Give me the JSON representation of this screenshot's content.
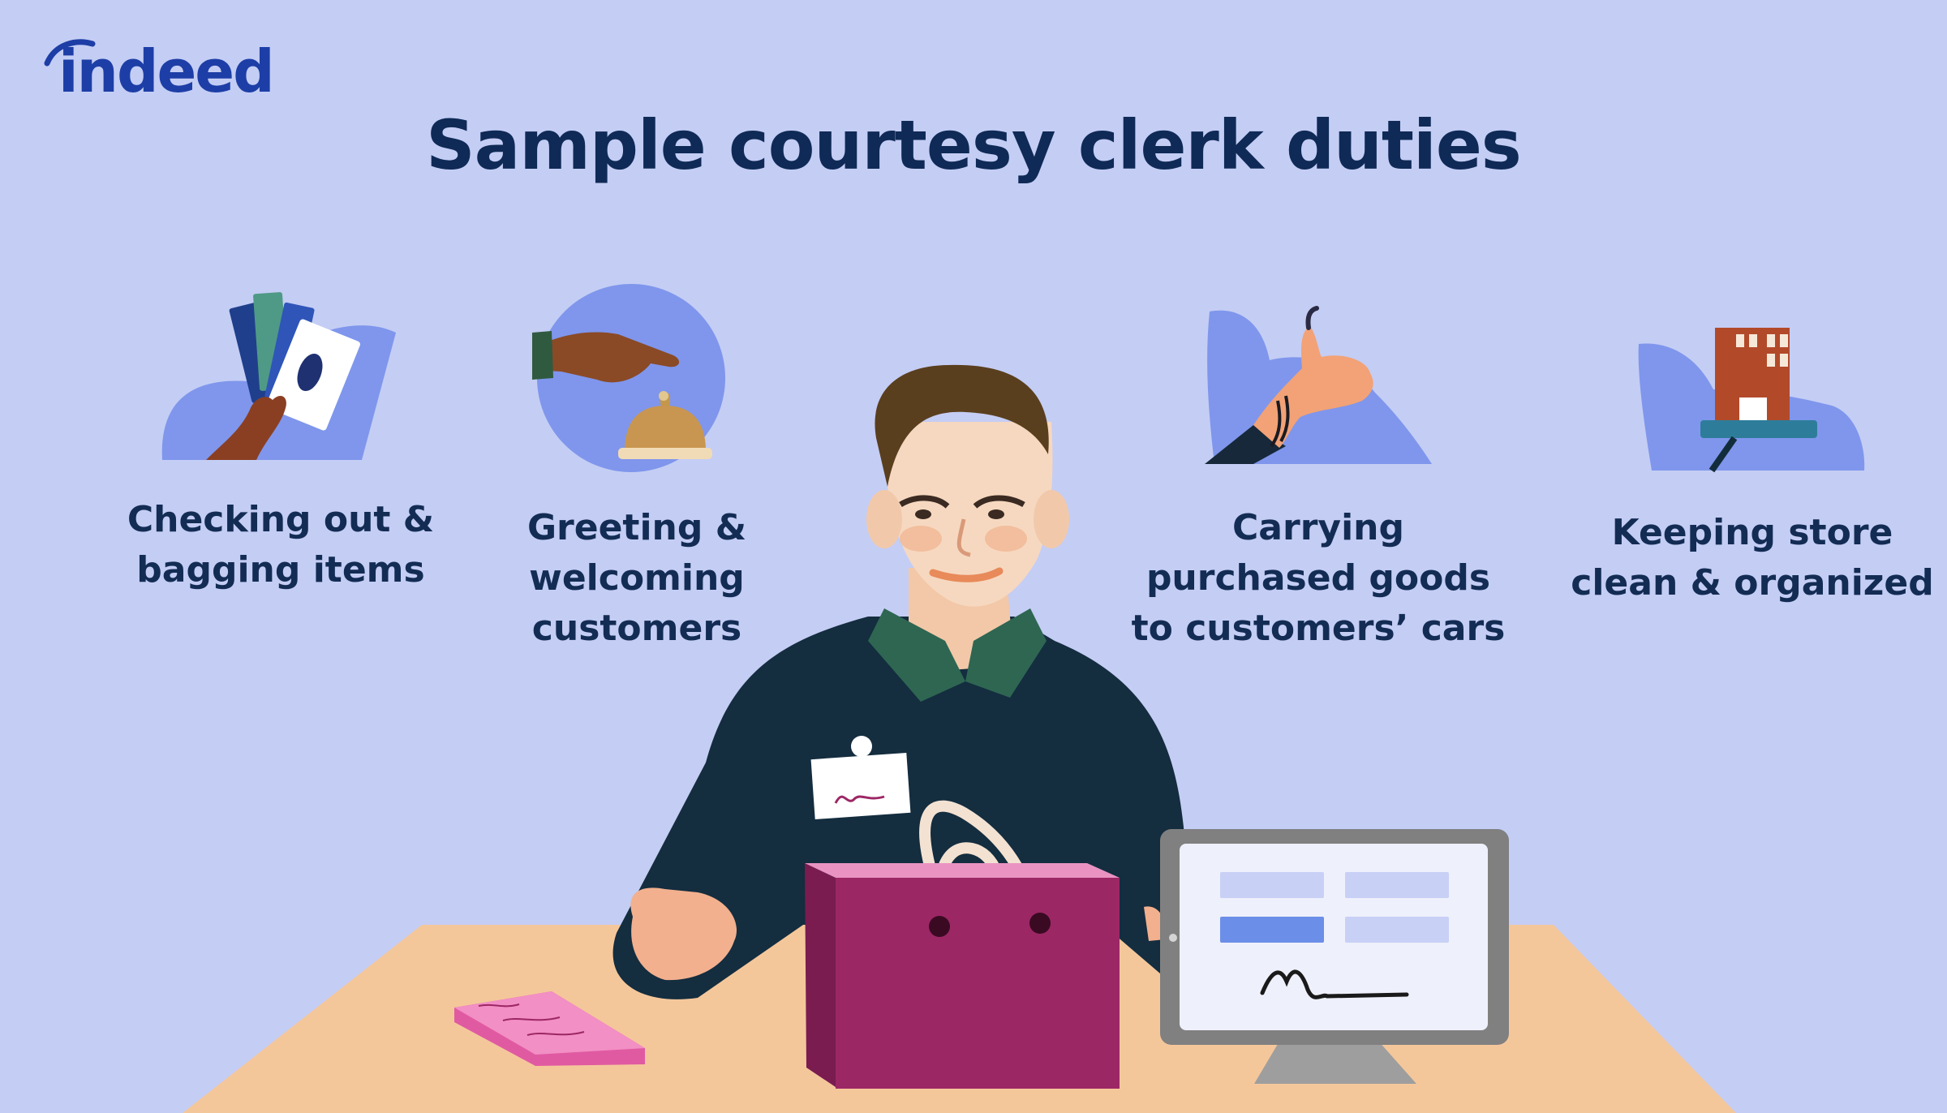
{
  "brand": {
    "name": "indeed"
  },
  "title": "Sample courtesy clerk duties",
  "duties": [
    {
      "label_lines": [
        "Checking out &",
        "bagging items"
      ],
      "icon": "cash-payment-icon"
    },
    {
      "label_lines": [
        "Greeting &",
        "welcoming",
        "customers"
      ],
      "icon": "service-bell-icon"
    },
    {
      "label_lines": [
        "Carrying",
        "purchased goods",
        "to customers’ cars"
      ],
      "icon": "thumbs-up-icon"
    },
    {
      "label_lines": [
        "Keeping store",
        "clean & organized"
      ],
      "icon": "store-building-icon"
    }
  ],
  "colors": {
    "background": "#c4cdf4",
    "title": "#0f2a56",
    "brand": "#1d3ea6",
    "blob": "#7f96ec",
    "shirt": "#142d3f",
    "collar": "#2e6652",
    "bag": "#9c2765",
    "counter": "#f4c79b"
  }
}
